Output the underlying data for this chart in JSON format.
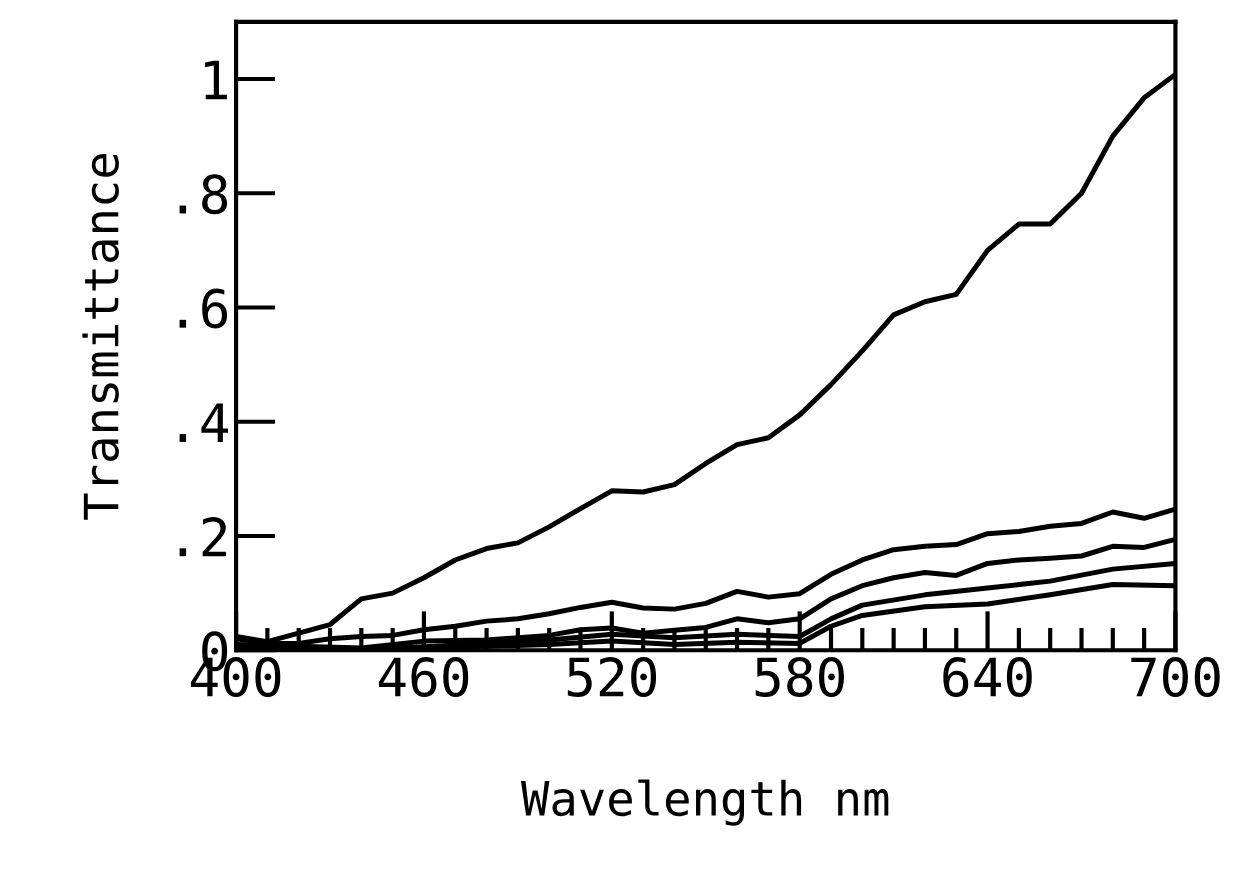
{
  "chart_data": {
    "type": "line",
    "xlabel": "Wavelength nm",
    "ylabel": "Transmittance",
    "xlim": [
      400,
      700
    ],
    "ylim": [
      0,
      1.1
    ],
    "xticks": [
      400,
      {
        "value": 410,
        "label": null
      },
      {
        "value": 420,
        "label": null
      },
      {
        "value": 430,
        "label": null
      },
      {
        "value": 440,
        "label": null
      },
      {
        "value": 450,
        "label": null
      },
      460,
      {
        "value": 470,
        "label": null
      },
      {
        "value": 480,
        "label": null
      },
      {
        "value": 490,
        "label": null
      },
      {
        "value": 500,
        "label": null
      },
      {
        "value": 510,
        "label": null
      },
      520,
      {
        "value": 530,
        "label": null
      },
      {
        "value": 540,
        "label": null
      },
      {
        "value": 550,
        "label": null
      },
      {
        "value": 560,
        "label": null
      },
      {
        "value": 570,
        "label": null
      },
      580,
      {
        "value": 590,
        "label": null
      },
      {
        "value": 600,
        "label": null
      },
      {
        "value": 610,
        "label": null
      },
      {
        "value": 620,
        "label": null
      },
      {
        "value": 630,
        "label": null
      },
      640,
      {
        "value": 650,
        "label": null
      },
      {
        "value": 660,
        "label": null
      },
      {
        "value": 670,
        "label": null
      },
      {
        "value": 680,
        "label": null
      },
      {
        "value": 690,
        "label": null
      },
      700
    ],
    "yticks": [
      0,
      {
        "value": 0.2,
        "label": ".2"
      },
      {
        "value": 0.4,
        "label": ".4"
      },
      {
        "value": 0.6,
        "label": ".6"
      },
      {
        "value": 0.8,
        "label": ".8"
      },
      1
    ],
    "grid": false,
    "legend": false,
    "marker": "none",
    "line_style": "solid",
    "series": [
      {
        "color": "#000000",
        "x": [
          400,
          410,
          420,
          430,
          440,
          450,
          460,
          470,
          480,
          490,
          500,
          510,
          520,
          530,
          540,
          550,
          560,
          570,
          580,
          590,
          600,
          610,
          620,
          630,
          640,
          650,
          660,
          670,
          680,
          690,
          700
        ],
        "values": [
          0.024,
          0.015,
          0.03,
          0.045,
          0.09,
          0.1,
          0.127,
          0.158,
          0.178,
          0.188,
          0.216,
          0.248,
          0.279,
          0.277,
          0.29,
          0.327,
          0.36,
          0.372,
          0.412,
          0.465,
          0.524,
          0.587,
          0.61,
          0.623,
          0.7,
          0.746,
          0.746,
          0.8,
          0.9,
          0.967,
          1.008
        ]
      },
      {
        "color": "#000000",
        "x": [
          400,
          410,
          420,
          430,
          440,
          450,
          460,
          470,
          480,
          490,
          500,
          510,
          520,
          530,
          540,
          550,
          560,
          570,
          580,
          590,
          600,
          610,
          620,
          630,
          640,
          650,
          660,
          670,
          680,
          690,
          700
        ],
        "values": [
          0.02,
          0.012,
          0.012,
          0.02,
          0.024,
          0.026,
          0.036,
          0.042,
          0.051,
          0.055,
          0.064,
          0.075,
          0.084,
          0.074,
          0.072,
          0.082,
          0.103,
          0.093,
          0.099,
          0.133,
          0.158,
          0.176,
          0.182,
          0.185,
          0.204,
          0.208,
          0.217,
          0.222,
          0.242,
          0.231,
          0.247
        ]
      },
      {
        "color": "#000000",
        "x": [
          400,
          440,
          460,
          480,
          500,
          510,
          520,
          530,
          540,
          550,
          560,
          570,
          580,
          590,
          600,
          610,
          620,
          630,
          640,
          650,
          660,
          670,
          680,
          690,
          700
        ],
        "values": [
          0.01,
          0.004,
          0.016,
          0.018,
          0.026,
          0.036,
          0.039,
          0.03,
          0.035,
          0.04,
          0.055,
          0.048,
          0.055,
          0.09,
          0.113,
          0.127,
          0.136,
          0.131,
          0.152,
          0.158,
          0.161,
          0.165,
          0.182,
          0.18,
          0.194
        ]
      },
      {
        "color": "#000000",
        "x": [
          400,
          440,
          460,
          480,
          500,
          520,
          540,
          560,
          580,
          590,
          600,
          620,
          640,
          660,
          680,
          700
        ],
        "values": [
          0.008,
          0.002,
          0.006,
          0.012,
          0.018,
          0.028,
          0.022,
          0.028,
          0.024,
          0.055,
          0.079,
          0.097,
          0.109,
          0.121,
          0.142,
          0.152
        ]
      },
      {
        "color": "#000000",
        "x": [
          400,
          440,
          460,
          500,
          520,
          540,
          560,
          580,
          590,
          600,
          620,
          640,
          660,
          680,
          700
        ],
        "values": [
          0.005,
          0.0,
          0.004,
          0.01,
          0.016,
          0.01,
          0.014,
          0.012,
          0.042,
          0.061,
          0.076,
          0.081,
          0.097,
          0.115,
          0.113
        ]
      }
    ]
  }
}
